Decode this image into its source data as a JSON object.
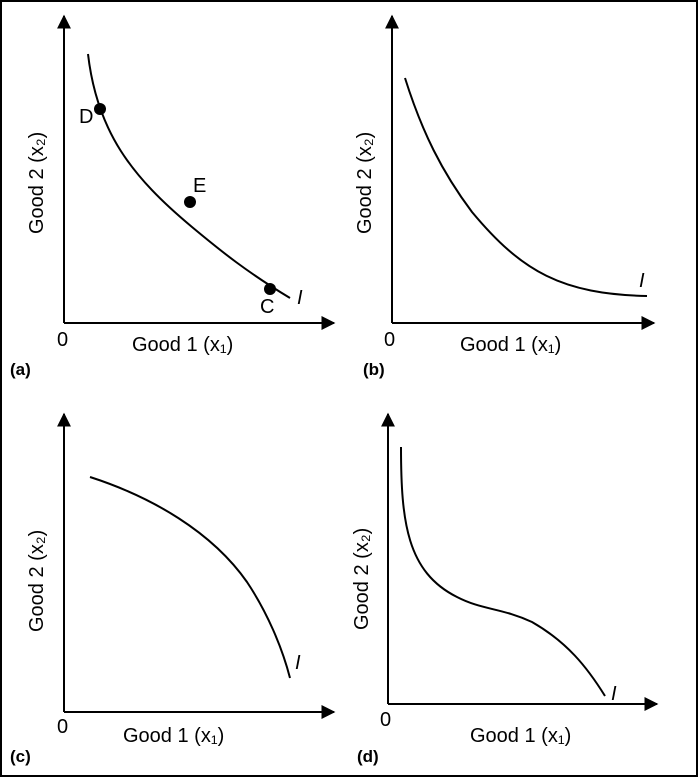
{
  "panels": [
    {
      "id": "a",
      "label": "(a)",
      "x_axis_label": "Good 1 (x₁)",
      "y_axis_label": "Good 2 (x₂)",
      "origin_label": "0",
      "curve_label": "I",
      "points": [
        {
          "label": "D"
        },
        {
          "label": "E"
        },
        {
          "label": "C"
        }
      ]
    },
    {
      "id": "b",
      "label": "(b)",
      "x_axis_label": "Good 1 (x₁)",
      "y_axis_label": "Good 2 (x₂)",
      "origin_label": "0",
      "curve_label": "I"
    },
    {
      "id": "c",
      "label": "(c)",
      "x_axis_label": "Good 1 (x₁)",
      "y_axis_label": "Good 2 (x₂)",
      "origin_label": "0",
      "curve_label": "I"
    },
    {
      "id": "d",
      "label": "(d)",
      "x_axis_label": "Good 1 (x₁)",
      "y_axis_label": "Good 2 (x₂)",
      "origin_label": "0",
      "curve_label": "I"
    }
  ]
}
